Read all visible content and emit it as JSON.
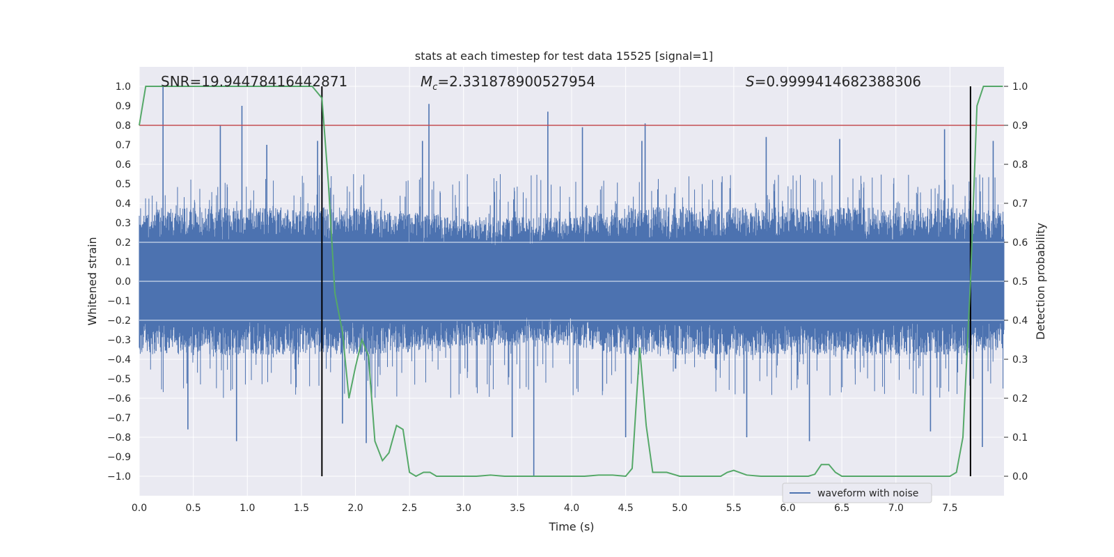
{
  "chart_data": {
    "type": "line",
    "title": "stats at each timestep for test data 15525 [signal=1]",
    "xlabel": "Time (s)",
    "ylabel_left": "Whitened strain",
    "ylabel_right": "Detection probability",
    "xlim": [
      0.0,
      8.0
    ],
    "ylim_left": [
      -1.1,
      1.1
    ],
    "ylim_right": [
      -0.05,
      1.05
    ],
    "xticks": [
      "0.0",
      "0.5",
      "1.0",
      "1.5",
      "2.0",
      "2.5",
      "3.0",
      "3.5",
      "4.0",
      "4.5",
      "5.0",
      "5.5",
      "6.0",
      "6.5",
      "7.0",
      "7.5"
    ],
    "yticks_left": [
      "1.0",
      "0.9",
      "0.8",
      "0.7",
      "0.6",
      "0.5",
      "0.4",
      "0.3",
      "0.2",
      "0.1",
      "0.0",
      "−0.1",
      "−0.2",
      "−0.3",
      "−0.4",
      "−0.5",
      "−0.6",
      "−0.7",
      "−0.8",
      "−0.9",
      "−1.0"
    ],
    "yticks_right": [
      "1.0",
      "0.9",
      "0.8",
      "0.7",
      "0.6",
      "0.5",
      "0.4",
      "0.3",
      "0.2",
      "0.1",
      "0.0"
    ],
    "annotations": {
      "snr": "SNR=19.94478416442871",
      "mc_symbol": "M",
      "mc_sub": "c",
      "mc_value": "=2.331878900527954",
      "s_symbol": "S",
      "s_value": "=0.9999414682388306"
    },
    "threshold": {
      "value": 0.9,
      "axis": "right",
      "color": "#c44e52"
    },
    "vertical_lines": [
      1.69,
      7.69
    ],
    "legend": {
      "label": "waveform with noise",
      "position": "lower-right"
    },
    "series": [
      {
        "name": "waveform with noise",
        "axis": "left",
        "color": "#4c72b0",
        "x_range": [
          0.0,
          8.0
        ],
        "envelope_upper": [
          0.38,
          0.38,
          0.38,
          0.38,
          0.38,
          0.36,
          0.33,
          0.33,
          0.33,
          0.38,
          0.38,
          0.38,
          0.38,
          0.38,
          0.38,
          0.38,
          0.36
        ],
        "envelope_lower": [
          -0.38,
          -0.38,
          -0.38,
          -0.38,
          -0.38,
          -0.36,
          -0.33,
          -0.33,
          -0.33,
          -0.38,
          -0.38,
          -0.38,
          -0.38,
          -0.38,
          -0.38,
          -0.38,
          -0.36
        ],
        "spikes": [
          {
            "x": 0.22,
            "y": 1.0
          },
          {
            "x": 0.95,
            "y": 0.9
          },
          {
            "x": 0.75,
            "y": 0.8
          },
          {
            "x": 1.18,
            "y": 0.7
          },
          {
            "x": 1.65,
            "y": 0.72
          },
          {
            "x": 2.68,
            "y": 0.91
          },
          {
            "x": 2.62,
            "y": 0.72
          },
          {
            "x": 3.78,
            "y": 0.87
          },
          {
            "x": 4.1,
            "y": 0.79
          },
          {
            "x": 4.68,
            "y": 0.81
          },
          {
            "x": 4.65,
            "y": 0.72
          },
          {
            "x": 5.8,
            "y": 0.74
          },
          {
            "x": 6.48,
            "y": 0.73
          },
          {
            "x": 7.45,
            "y": 0.78
          },
          {
            "x": 7.9,
            "y": 0.72
          },
          {
            "x": 3.65,
            "y": -1.0
          },
          {
            "x": 3.45,
            "y": -0.8
          },
          {
            "x": 0.9,
            "y": -0.82
          },
          {
            "x": 2.1,
            "y": -0.83
          },
          {
            "x": 0.45,
            "y": -0.76
          },
          {
            "x": 4.5,
            "y": -0.8
          },
          {
            "x": 6.2,
            "y": -0.82
          },
          {
            "x": 5.62,
            "y": -0.8
          },
          {
            "x": 7.8,
            "y": -0.85
          },
          {
            "x": 7.32,
            "y": -0.77
          },
          {
            "x": 1.88,
            "y": -0.73
          }
        ]
      },
      {
        "name": "detection probability",
        "axis": "right",
        "color": "#55a868",
        "x": [
          0.0,
          0.06,
          0.3,
          0.6,
          1.0,
          1.35,
          1.55,
          1.6,
          1.63,
          1.69,
          1.75,
          1.81,
          1.88,
          1.94,
          2.0,
          2.06,
          2.12,
          2.18,
          2.25,
          2.31,
          2.38,
          2.44,
          2.5,
          2.56,
          2.63,
          2.69,
          2.75,
          2.81,
          2.88,
          3.0,
          3.12,
          3.25,
          3.38,
          3.5,
          3.62,
          3.75,
          3.88,
          4.0,
          4.12,
          4.25,
          4.38,
          4.5,
          4.56,
          4.63,
          4.69,
          4.75,
          4.81,
          4.88,
          5.0,
          5.12,
          5.25,
          5.38,
          5.44,
          5.5,
          5.62,
          5.75,
          5.88,
          6.0,
          6.12,
          6.19,
          6.25,
          6.31,
          6.38,
          6.44,
          6.5,
          6.62,
          6.75,
          6.88,
          7.0,
          7.12,
          7.25,
          7.38,
          7.5,
          7.56,
          7.62,
          7.69,
          7.75,
          7.81,
          7.88,
          7.99
        ],
        "y": [
          0.9,
          1.0,
          1.0,
          1.0,
          1.0,
          1.0,
          1.0,
          1.0,
          0.99,
          0.97,
          0.75,
          0.47,
          0.37,
          0.2,
          0.28,
          0.35,
          0.31,
          0.09,
          0.04,
          0.06,
          0.13,
          0.12,
          0.01,
          0.0,
          0.01,
          0.01,
          0.0,
          0.0,
          0.0,
          0.0,
          0.0,
          0.003,
          0.0,
          0.0,
          0.0,
          0.0,
          0.0,
          0.0,
          0.0,
          0.003,
          0.003,
          0.0,
          0.02,
          0.33,
          0.13,
          0.01,
          0.01,
          0.01,
          0.0,
          0.0,
          0.0,
          0.0,
          0.01,
          0.015,
          0.003,
          0.0,
          0.0,
          0.0,
          0.0,
          0.0,
          0.005,
          0.03,
          0.03,
          0.01,
          0.0,
          0.0,
          0.0,
          0.0,
          0.0,
          0.0,
          0.0,
          0.0,
          0.0,
          0.01,
          0.1,
          0.5,
          0.95,
          1.0,
          1.0,
          1.0
        ]
      }
    ]
  }
}
